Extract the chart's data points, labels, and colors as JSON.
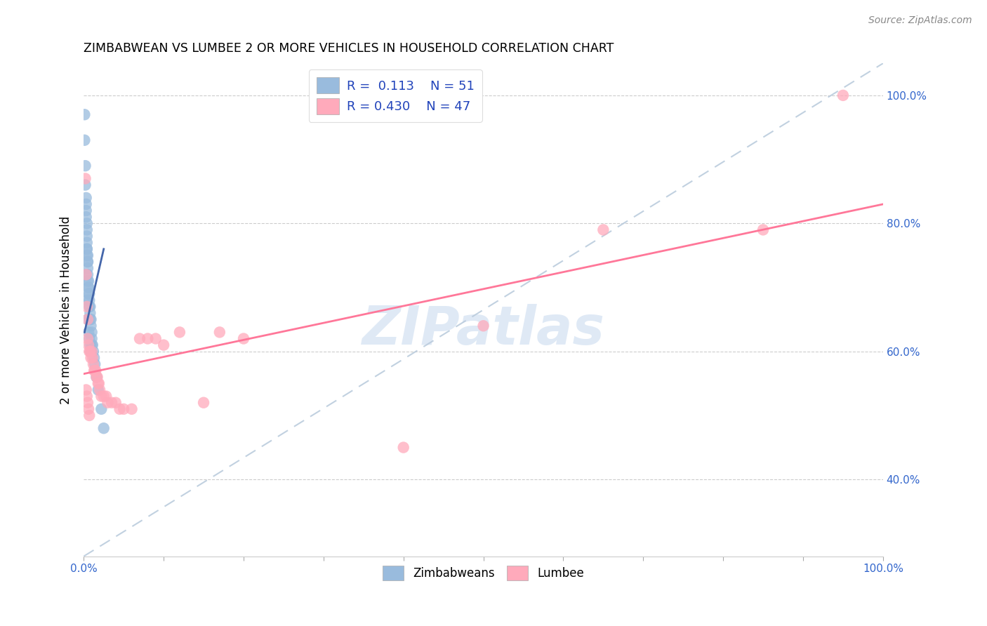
{
  "title": "ZIMBABWEAN VS LUMBEE 2 OR MORE VEHICLES IN HOUSEHOLD CORRELATION CHART",
  "source": "Source: ZipAtlas.com",
  "ylabel": "2 or more Vehicles in Household",
  "legend_blue_r": "0.113",
  "legend_blue_n": "51",
  "legend_pink_r": "0.430",
  "legend_pink_n": "47",
  "watermark": "ZIPatlas",
  "blue_color": "#99BBDD",
  "pink_color": "#FFAABB",
  "blue_line_color": "#4466AA",
  "pink_line_color": "#FF7799",
  "diagonal_color": "#BBCCDD",
  "zimbabwean_x": [
    0.001,
    0.001,
    0.002,
    0.002,
    0.003,
    0.003,
    0.003,
    0.003,
    0.004,
    0.004,
    0.004,
    0.004,
    0.004,
    0.004,
    0.004,
    0.005,
    0.005,
    0.005,
    0.005,
    0.005,
    0.005,
    0.006,
    0.006,
    0.006,
    0.006,
    0.007,
    0.007,
    0.007,
    0.008,
    0.008,
    0.008,
    0.009,
    0.009,
    0.01,
    0.01,
    0.01,
    0.011,
    0.012,
    0.013,
    0.014,
    0.016,
    0.018,
    0.022,
    0.025,
    0.003,
    0.004,
    0.005,
    0.006,
    0.007,
    0.008,
    0.009
  ],
  "zimbabwean_y": [
    0.97,
    0.93,
    0.89,
    0.86,
    0.84,
    0.83,
    0.82,
    0.81,
    0.8,
    0.79,
    0.78,
    0.77,
    0.76,
    0.76,
    0.75,
    0.75,
    0.74,
    0.74,
    0.73,
    0.72,
    0.71,
    0.71,
    0.7,
    0.7,
    0.69,
    0.69,
    0.68,
    0.67,
    0.67,
    0.66,
    0.65,
    0.65,
    0.64,
    0.63,
    0.62,
    0.61,
    0.61,
    0.6,
    0.59,
    0.58,
    0.56,
    0.54,
    0.51,
    0.48,
    0.72,
    0.68,
    0.65,
    0.63,
    0.62,
    0.61,
    0.6
  ],
  "lumbee_x": [
    0.002,
    0.003,
    0.004,
    0.005,
    0.005,
    0.006,
    0.007,
    0.008,
    0.009,
    0.01,
    0.011,
    0.012,
    0.013,
    0.014,
    0.015,
    0.016,
    0.017,
    0.018,
    0.019,
    0.02,
    0.022,
    0.025,
    0.028,
    0.03,
    0.035,
    0.04,
    0.045,
    0.05,
    0.06,
    0.07,
    0.08,
    0.09,
    0.1,
    0.12,
    0.15,
    0.17,
    0.2,
    0.4,
    0.5,
    0.65,
    0.85,
    0.95,
    0.003,
    0.004,
    0.005,
    0.006,
    0.007
  ],
  "lumbee_y": [
    0.87,
    0.72,
    0.67,
    0.65,
    0.62,
    0.61,
    0.6,
    0.6,
    0.59,
    0.6,
    0.59,
    0.58,
    0.57,
    0.57,
    0.57,
    0.56,
    0.56,
    0.55,
    0.55,
    0.54,
    0.53,
    0.53,
    0.53,
    0.52,
    0.52,
    0.52,
    0.51,
    0.51,
    0.51,
    0.62,
    0.62,
    0.62,
    0.61,
    0.63,
    0.52,
    0.63,
    0.62,
    0.45,
    0.64,
    0.79,
    0.79,
    1.0,
    0.54,
    0.53,
    0.52,
    0.51,
    0.5
  ],
  "blue_fit_x": [
    0.001,
    0.025
  ],
  "blue_fit_y": [
    0.63,
    0.76
  ],
  "pink_fit_x": [
    0.0,
    1.0
  ],
  "pink_fit_y": [
    0.565,
    0.83
  ],
  "xmin": 0.0,
  "xmax": 1.0,
  "ymin": 0.28,
  "ymax": 1.05
}
